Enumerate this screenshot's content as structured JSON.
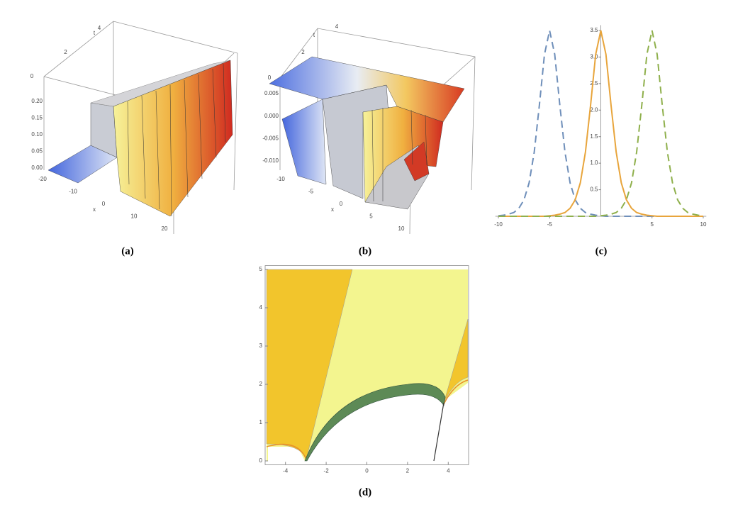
{
  "chart_data": [
    {
      "type": "surface",
      "label": "(a)",
      "x_label": "x",
      "t_label": "t",
      "xticks": [
        -20,
        -10,
        0,
        10,
        20
      ],
      "tticks": [
        0,
        2,
        4
      ],
      "zticks": [
        {
          "value": 0,
          "label": "0.00"
        },
        0.05,
        {
          "value": 0.1,
          "label": "0.10"
        },
        0.15,
        {
          "value": 0.2,
          "label": "0.20"
        }
      ]
    },
    {
      "type": "surface",
      "label": "(b)",
      "x_label": "x",
      "t_label": "t",
      "xticks": [
        -10,
        -5,
        0,
        5,
        10
      ],
      "tticks": [
        0,
        2,
        4
      ],
      "zticks": [
        {
          "value": -0.01,
          "label": "-0.010"
        },
        -0.005,
        {
          "value": 0,
          "label": "0.000"
        },
        0.005
      ]
    },
    {
      "type": "line",
      "label": "(c)",
      "x": [
        -10,
        -9.5,
        -9,
        -8.5,
        -8,
        -7.5,
        -7,
        -6.5,
        -6,
        -5.5,
        -5,
        -4.5,
        -4,
        -3.5,
        -3,
        -2.5,
        -2,
        -1.5,
        -1,
        -0.5,
        0,
        0.5,
        1,
        1.5,
        2,
        2.5,
        3,
        3.5,
        4,
        4.5,
        5,
        5.5,
        6,
        6.5,
        7,
        7.5,
        8,
        8.5,
        9,
        9.5,
        10
      ],
      "series": [
        {
          "color": "#6f8fba",
          "dash": true,
          "values": [
            0.01,
            0.02,
            0.04,
            0.07,
            0.15,
            0.31,
            0.63,
            1.21,
            2.09,
            3.05,
            3.5,
            3.05,
            2.09,
            1.21,
            0.63,
            0.31,
            0.15,
            0.07,
            0.04,
            0.02,
            0.01,
            0,
            0,
            0,
            0,
            0,
            0,
            0,
            0,
            0,
            0,
            0,
            0,
            0,
            0,
            0,
            0,
            0,
            0,
            0,
            0
          ]
        },
        {
          "color": "#e8a53c",
          "dash": false,
          "values": [
            0,
            0,
            0,
            0,
            0,
            0,
            0,
            0,
            0,
            0,
            0.01,
            0.02,
            0.04,
            0.07,
            0.15,
            0.31,
            0.63,
            1.21,
            2.09,
            3.05,
            3.5,
            3.05,
            2.09,
            1.21,
            0.63,
            0.31,
            0.15,
            0.07,
            0.04,
            0.02,
            0.01,
            0,
            0,
            0,
            0,
            0,
            0,
            0,
            0,
            0,
            0
          ]
        },
        {
          "color": "#8fb04c",
          "dash": true,
          "values": [
            0,
            0,
            0,
            0,
            0,
            0,
            0,
            0,
            0,
            0,
            0,
            0,
            0,
            0,
            0,
            0,
            0,
            0,
            0,
            0,
            0.01,
            0.02,
            0.04,
            0.07,
            0.15,
            0.31,
            0.63,
            1.21,
            2.09,
            3.05,
            3.5,
            3.05,
            2.09,
            1.21,
            0.63,
            0.31,
            0.15,
            0.07,
            0.04,
            0.02,
            0.01
          ]
        }
      ],
      "xlim": [
        -10.3,
        10.3
      ],
      "ylim": [
        0,
        3.6
      ],
      "xticks": [
        -10,
        -5,
        5,
        10
      ],
      "yticks": [
        0.5,
        {
          "value": 1,
          "label": "1.0"
        },
        1.5,
        {
          "value": 2,
          "label": "2.0"
        },
        2.5,
        {
          "value": 3,
          "label": "3.0"
        },
        3.5
      ]
    },
    {
      "type": "contour",
      "label": "(d)",
      "xlim": [
        -5,
        5
      ],
      "ylim": [
        -0.1,
        5.1
      ],
      "xticks": [
        -4,
        -2,
        0,
        2,
        4
      ],
      "yticks": [
        0,
        1,
        2,
        3,
        4,
        5
      ]
    }
  ]
}
